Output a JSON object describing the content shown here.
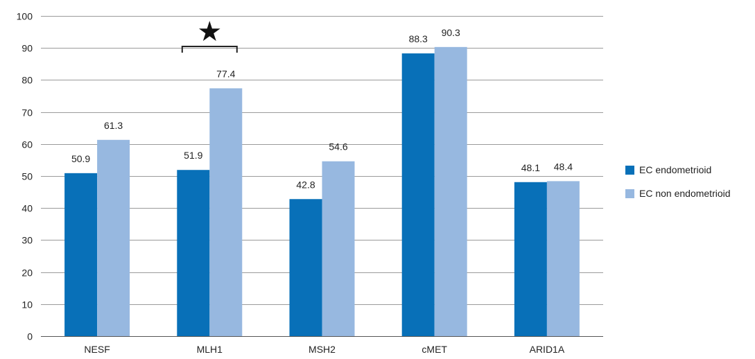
{
  "chart_data": {
    "type": "bar",
    "title": "",
    "xlabel": "",
    "ylabel": "",
    "categories": [
      "NESF",
      "MLH1",
      "MSH2",
      "cMET",
      "ARID1A"
    ],
    "series": [
      {
        "name": "EC endometrioid",
        "values": [
          50.9,
          51.9,
          42.8,
          88.3,
          48.1
        ],
        "color": "#0870b8"
      },
      {
        "name": "EC non endometrioid",
        "values": [
          61.3,
          77.4,
          54.6,
          90.3,
          48.4
        ],
        "color": "#97b8e0"
      }
    ],
    "data_labels": {
      "EC endometrioid": [
        "50.9",
        "51.9",
        "42.8",
        "88.3",
        "48.1"
      ],
      "EC non endometrioid": [
        "61.3",
        "77.4",
        "54.6",
        "90.3",
        "48.4"
      ]
    },
    "ylim": [
      0,
      100
    ],
    "yticks": [
      "0",
      "10",
      "20",
      "30",
      "40",
      "50",
      "60",
      "70",
      "80",
      "90",
      "100"
    ],
    "grid": true,
    "legend_position": "right",
    "annotations": [
      {
        "type": "significance-star",
        "category": "MLH1",
        "symbol": "★"
      }
    ]
  }
}
